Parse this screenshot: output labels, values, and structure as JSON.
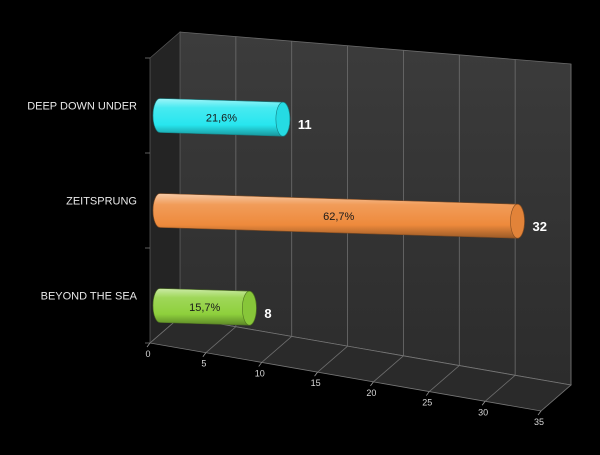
{
  "chart_data": {
    "type": "bar",
    "orientation": "horizontal",
    "style": "3d-cylinder",
    "categories": [
      "DEEP DOWN UNDER",
      "ZEITSPRUNG",
      "BEYOND THE SEA"
    ],
    "values": [
      11,
      32,
      8
    ],
    "percent_labels": [
      "21,6%",
      "62,7%",
      "15,7%"
    ],
    "value_labels": [
      "11",
      "32",
      "8"
    ],
    "colors": [
      "#27e6ef",
      "#ee8a3c",
      "#8ed03c"
    ],
    "x_ticks": [
      "0",
      "5",
      "10",
      "15",
      "20",
      "25",
      "30",
      "35"
    ],
    "xlim": [
      0,
      35
    ],
    "grid": true,
    "legend": "none",
    "title": "",
    "xlabel": "",
    "ylabel": ""
  }
}
